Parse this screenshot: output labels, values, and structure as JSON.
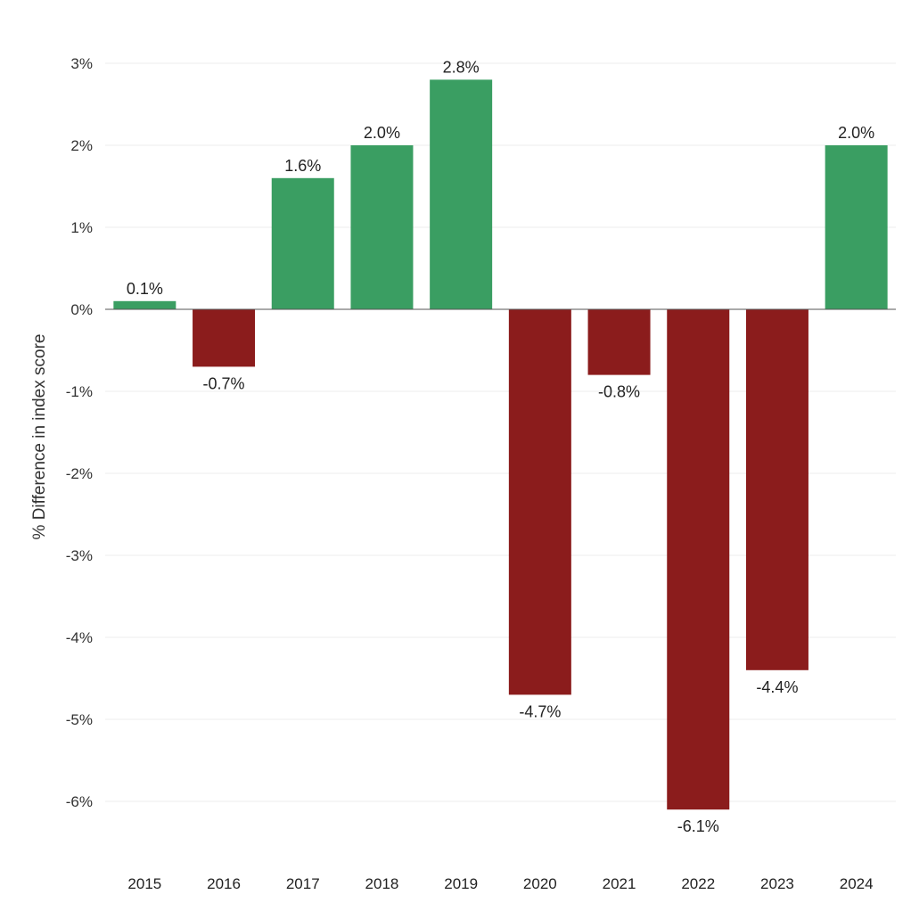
{
  "chart_data": {
    "type": "bar",
    "categories": [
      "2015",
      "2016",
      "2017",
      "2018",
      "2019",
      "2020",
      "2021",
      "2022",
      "2023",
      "2024"
    ],
    "values": [
      0.1,
      -0.7,
      1.6,
      2.0,
      2.8,
      -4.7,
      -0.8,
      -6.1,
      -4.4,
      2.0
    ],
    "data_labels": [
      "0.1%",
      "-0.7%",
      "1.6%",
      "2.0%",
      "2.8%",
      "-4.7%",
      "-0.8%",
      "-6.1%",
      "-4.4%",
      "2.0%"
    ],
    "title": "",
    "xlabel": "",
    "ylabel": "% Difference in index score",
    "ylim": [
      -6,
      3
    ],
    "yticks": [
      3,
      2,
      1,
      0,
      -1,
      -2,
      -3,
      -4,
      -5,
      -6
    ],
    "ytick_labels": [
      "3%",
      "2%",
      "1%",
      "0%",
      "-1%",
      "-2%",
      "-3%",
      "-4%",
      "-5%",
      "-6%"
    ],
    "grid": true,
    "colors": {
      "positive": "#3a9e62",
      "negative": "#8b1c1c"
    }
  }
}
